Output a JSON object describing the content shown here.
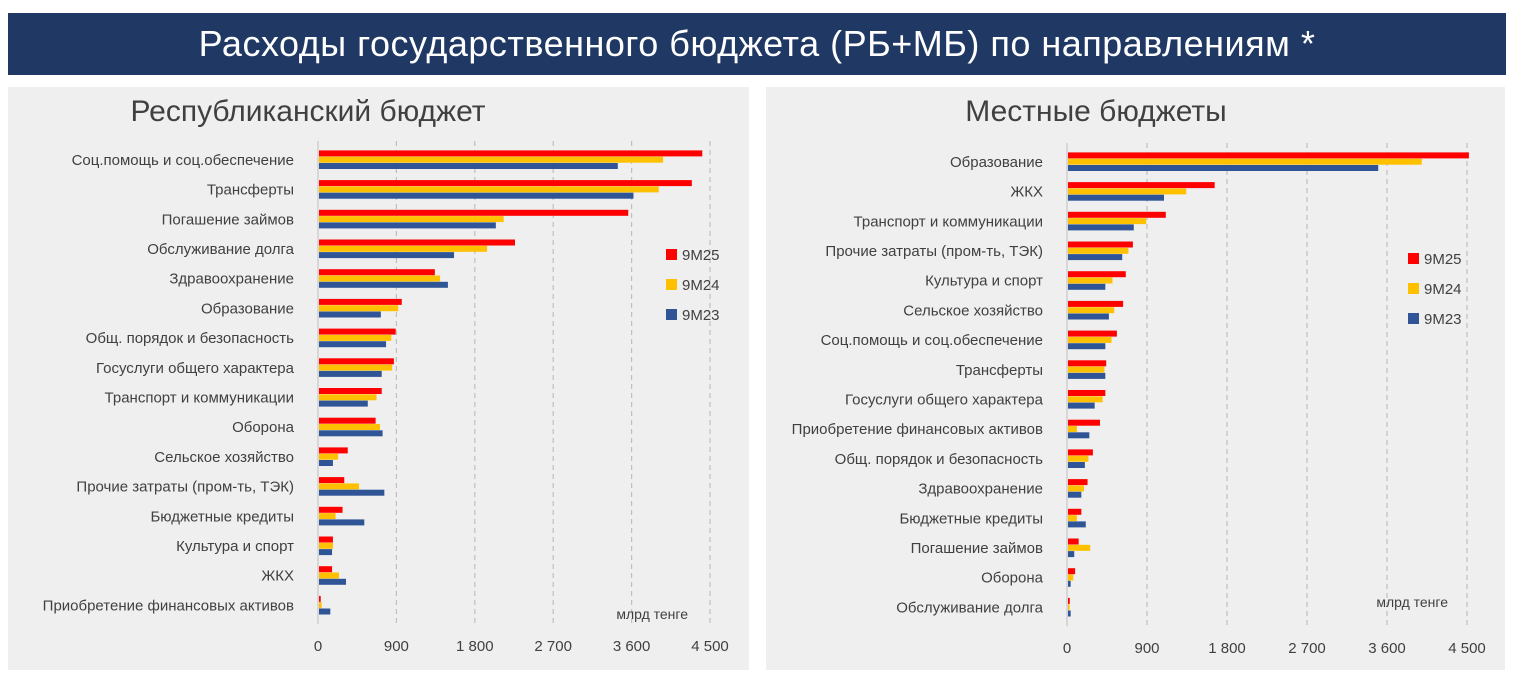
{
  "header": {
    "title": "Расходы государственного бюджета (РБ+МБ) по направлениям *"
  },
  "colors": {
    "9M25": "#ff0000",
    "9M24": "#ffc000",
    "9M23": "#2f5597",
    "banner": "#1f3864"
  },
  "chart_data": [
    {
      "type": "bar",
      "orientation": "horizontal",
      "title": "Республиканский бюджет",
      "unit": "млрд тенге",
      "xlim": [
        0,
        4500
      ],
      "xticks": [
        0,
        900,
        1800,
        2700,
        3600,
        4500
      ],
      "xtick_labels": [
        "0",
        "900",
        "1 800",
        "2 700",
        "3 600",
        "4 500"
      ],
      "grid": "vertical dashed",
      "legend_position": "right",
      "categories": [
        "Соц.помощь и соц.обеспечение",
        "Трансферты",
        "Погашение займов",
        "Обслуживание долга",
        "Здравоохранение",
        "Образование",
        "Общ. порядок и безопасность",
        "Госуслуги общего характера",
        "Транспорт и коммуникации",
        "Оборона",
        "Сельское хозяйство",
        "Прочие затраты (пром-ть, ТЭК)",
        "Бюджетные кредиты",
        "Культура и спорт",
        "ЖКХ",
        "Приобретение финансовых активов"
      ],
      "series": [
        {
          "name": "9М25",
          "values": [
            4400,
            4280,
            3550,
            2250,
            1330,
            950,
            880,
            860,
            720,
            650,
            330,
            290,
            270,
            160,
            150,
            20
          ]
        },
        {
          "name": "9М24",
          "values": [
            3950,
            3900,
            2120,
            1930,
            1390,
            910,
            830,
            840,
            660,
            700,
            220,
            460,
            190,
            160,
            230,
            30
          ]
        },
        {
          "name": "9М23",
          "values": [
            3430,
            3610,
            2030,
            1550,
            1480,
            710,
            770,
            720,
            560,
            730,
            160,
            750,
            520,
            150,
            310,
            130
          ]
        }
      ]
    },
    {
      "type": "bar",
      "orientation": "horizontal",
      "title": "Местные бюджеты",
      "unit": "млрд тенге",
      "xlim": [
        0,
        4500
      ],
      "xticks": [
        0,
        900,
        1800,
        2700,
        3600,
        4500
      ],
      "xtick_labels": [
        "0",
        "900",
        "1 800",
        "2 700",
        "3 600",
        "4 500"
      ],
      "grid": "vertical dashed",
      "legend_position": "right",
      "categories": [
        "Образование",
        "ЖКХ",
        "Транспорт и коммуникации",
        "Прочие затраты (пром-ть, ТЭК)",
        "Культура и спорт",
        "Сельское хозяйство",
        "Соц.помощь и соц.обеспечение",
        "Трансферты",
        "Госуслуги общего характера",
        "Приобретение финансовых активов",
        "Общ. порядок и безопасность",
        "Здравоохранение",
        "Бюджетные кредиты",
        "Погашение займов",
        "Оборона",
        "Обслуживание долга"
      ],
      "series": [
        {
          "name": "9М25",
          "values": [
            4510,
            1650,
            1100,
            730,
            650,
            620,
            550,
            430,
            420,
            360,
            280,
            220,
            150,
            120,
            80,
            20
          ]
        },
        {
          "name": "9М24",
          "values": [
            3980,
            1330,
            880,
            680,
            500,
            520,
            490,
            410,
            390,
            100,
            230,
            180,
            100,
            250,
            60,
            10
          ]
        },
        {
          "name": "9М23",
          "values": [
            3490,
            1080,
            740,
            610,
            420,
            460,
            420,
            420,
            300,
            240,
            190,
            150,
            200,
            70,
            30,
            30
          ]
        }
      ]
    }
  ]
}
